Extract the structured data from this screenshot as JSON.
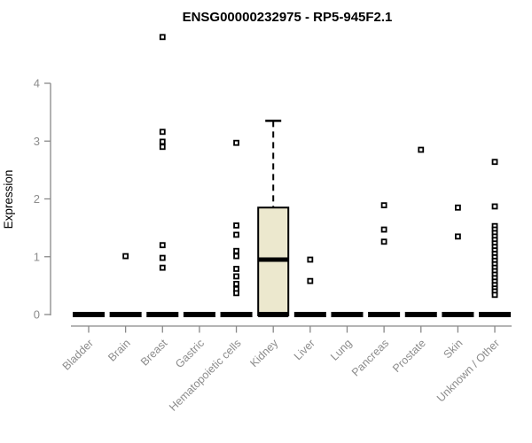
{
  "chart_data": {
    "type": "boxplot",
    "title": "ENSG00000232975 - RP5-945F2.1",
    "ylabel": "Expression",
    "xlabel": "",
    "ylim": [
      0,
      4
    ],
    "yticks": [
      0,
      1,
      2,
      3,
      4
    ],
    "grid": false,
    "legend": "none",
    "categories": [
      "Bladder",
      "Brain",
      "Breast",
      "Gastric",
      "Hematopoietic cells",
      "Kidney",
      "Liver",
      "Lung",
      "Pancreas",
      "Prostate",
      "Skin",
      "Unknown / Other"
    ],
    "series": [
      {
        "category": "Bladder",
        "box": {
          "min": 0,
          "q1": 0,
          "median": 0,
          "q3": 0,
          "max": 0
        },
        "outliers": []
      },
      {
        "category": "Brain",
        "box": {
          "min": 0,
          "q1": 0,
          "median": 0,
          "q3": 0,
          "max": 0
        },
        "outliers": [
          1.01
        ]
      },
      {
        "category": "Breast",
        "box": {
          "min": 0,
          "q1": 0,
          "median": 0,
          "q3": 0,
          "max": 0
        },
        "outliers": [
          4.8,
          3.16,
          2.99,
          2.9,
          1.2,
          0.98,
          0.81
        ]
      },
      {
        "category": "Gastric",
        "box": {
          "min": 0,
          "q1": 0,
          "median": 0,
          "q3": 0,
          "max": 0
        },
        "outliers": []
      },
      {
        "category": "Hematopoietic cells",
        "box": {
          "min": 0,
          "q1": 0,
          "median": 0,
          "q3": 0,
          "max": 0
        },
        "outliers": [
          2.97,
          1.54,
          1.38,
          1.1,
          1.01,
          0.79,
          0.66,
          0.53,
          0.44,
          0.37
        ]
      },
      {
        "category": "Kidney",
        "box": {
          "min": 0,
          "q1": 0,
          "median": 0.95,
          "q3": 1.85,
          "max": 3.35
        },
        "outliers": []
      },
      {
        "category": "Liver",
        "box": {
          "min": 0,
          "q1": 0,
          "median": 0,
          "q3": 0,
          "max": 0
        },
        "outliers": [
          0.95,
          0.58
        ]
      },
      {
        "category": "Lung",
        "box": {
          "min": 0,
          "q1": 0,
          "median": 0,
          "q3": 0,
          "max": 0
        },
        "outliers": []
      },
      {
        "category": "Pancreas",
        "box": {
          "min": 0,
          "q1": 0,
          "median": 0,
          "q3": 0,
          "max": 0
        },
        "outliers": [
          1.89,
          1.47,
          1.26
        ]
      },
      {
        "category": "Prostate",
        "box": {
          "min": 0,
          "q1": 0,
          "median": 0,
          "q3": 0,
          "max": 0
        },
        "outliers": [
          2.85
        ]
      },
      {
        "category": "Skin",
        "box": {
          "min": 0,
          "q1": 0,
          "median": 0,
          "q3": 0,
          "max": 0
        },
        "outliers": [
          1.85,
          1.35
        ]
      },
      {
        "category": "Unknown / Other",
        "box": {
          "min": 0,
          "q1": 0,
          "median": 0,
          "q3": 0,
          "max": 0
        },
        "outliers": [
          2.64,
          1.87,
          1.53,
          1.47,
          1.41,
          1.35,
          1.29,
          1.23,
          1.17,
          1.11,
          1.05,
          0.99,
          0.93,
          0.87,
          0.81,
          0.75,
          0.69,
          0.63,
          0.57,
          0.51,
          0.45,
          0.4,
          0.34
        ]
      }
    ],
    "colors": {
      "box_fill": "#ece8ce",
      "box_border": "#000000",
      "median": "#000000",
      "collapsed_bar": "#000000",
      "axis": "#898989",
      "tick_label": "#8c8c8c",
      "title": "#000000",
      "background": "#ffffff",
      "marker_stroke": "#000000",
      "marker_fill": "#ffffff"
    }
  }
}
